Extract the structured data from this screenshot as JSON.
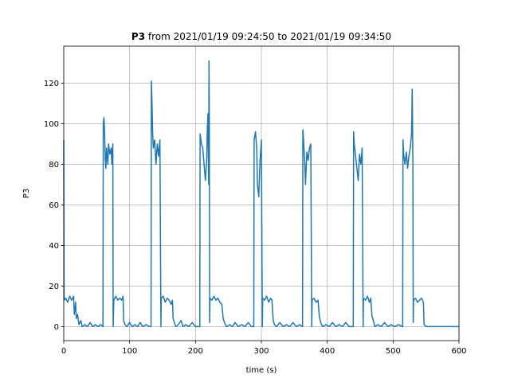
{
  "chart_data": {
    "type": "line",
    "title_parts": [
      "P3",
      "from 2021/01/19 09:24:50 to 2021/01/19 09:34:50"
    ],
    "xlabel": "time (s)",
    "ylabel": "P3",
    "color": "#1f77b4",
    "grid": true,
    "xlim": [
      0,
      600
    ],
    "xticks": [
      0,
      100,
      200,
      300,
      400,
      500,
      600
    ],
    "ylim": [
      -6.9,
      138.2
    ],
    "yticks": [
      0,
      20,
      40,
      60,
      80,
      100,
      120
    ],
    "x": [
      0,
      0.5,
      3,
      6,
      9,
      12,
      15,
      16,
      18,
      19,
      21,
      23,
      26,
      28,
      32,
      36,
      40,
      44,
      48,
      52,
      56,
      59.5,
      60,
      61,
      62,
      63,
      64,
      65,
      67,
      68,
      70,
      72,
      73,
      74.5,
      75,
      76,
      79,
      82,
      85,
      88,
      90,
      91,
      93,
      96,
      100,
      104,
      108,
      112,
      116,
      120,
      125,
      130,
      132.5,
      133,
      134,
      135,
      136,
      138,
      140,
      142,
      144,
      146,
      147.5,
      148,
      151,
      154,
      157,
      160,
      163,
      165,
      166,
      168,
      170,
      174,
      178,
      181,
      185,
      190,
      195,
      200,
      206.5,
      207,
      209,
      211,
      213,
      215,
      217,
      218,
      219,
      220,
      220.5,
      221,
      221.5,
      222,
      225,
      228,
      231,
      234,
      237,
      240,
      242,
      244,
      247,
      252,
      256,
      260,
      265,
      270,
      275,
      280,
      285,
      288.5,
      289,
      291,
      293,
      294,
      296,
      298,
      300,
      301.5,
      302,
      305,
      308,
      311,
      314,
      316,
      318,
      320,
      323,
      328,
      333,
      338,
      343,
      348,
      353,
      358,
      362.5,
      363,
      364,
      366,
      367,
      369,
      371,
      373,
      375,
      376.5,
      377,
      380,
      383,
      386,
      388,
      390,
      393,
      398,
      403,
      408,
      413,
      418,
      423,
      428,
      433,
      439.5,
      440,
      441,
      443,
      445,
      447,
      449,
      451,
      453,
      454.5,
      455,
      458,
      461,
      464,
      466,
      468,
      470,
      472,
      477,
      482,
      487,
      492,
      497,
      502,
      508,
      514.5,
      515,
      516,
      518,
      520,
      522,
      524,
      526,
      528,
      529,
      530,
      530.5,
      531,
      534,
      537,
      540,
      543,
      546,
      547,
      550,
      560,
      570,
      580,
      590,
      600
    ],
    "values": [
      92,
      13,
      14,
      12,
      15,
      13,
      15,
      6,
      12,
      4,
      6,
      1,
      3,
      0,
      1,
      0,
      2,
      0,
      1,
      0,
      1,
      0,
      100,
      103,
      96,
      82,
      78,
      88,
      80,
      90,
      85,
      88,
      80,
      90,
      0,
      13,
      15,
      13,
      14,
      13,
      15,
      3,
      1,
      0,
      2,
      0,
      1,
      0,
      2,
      0,
      1,
      0,
      0,
      121,
      110,
      95,
      88,
      92,
      80,
      90,
      84,
      92,
      0,
      14,
      15,
      12,
      14,
      13,
      11,
      13,
      4,
      2,
      0,
      1,
      3,
      0,
      1,
      0,
      2,
      0,
      0,
      95,
      90,
      88,
      80,
      72,
      82,
      98,
      105,
      70,
      131,
      100,
      2,
      14,
      13,
      15,
      13,
      14,
      12,
      11,
      4,
      2,
      0,
      1,
      0,
      2,
      0,
      1,
      0,
      2,
      0,
      0,
      92,
      96,
      88,
      70,
      64,
      82,
      92,
      0,
      14,
      13,
      15,
      12,
      14,
      13,
      3,
      1,
      0,
      2,
      0,
      1,
      0,
      2,
      0,
      1,
      0,
      97,
      92,
      80,
      70,
      86,
      82,
      88,
      90,
      0,
      13,
      14,
      12,
      13,
      5,
      2,
      0,
      1,
      0,
      2,
      0,
      1,
      0,
      2,
      0,
      0,
      96,
      90,
      84,
      78,
      72,
      85,
      80,
      88,
      0,
      14,
      13,
      15,
      12,
      14,
      5,
      3,
      0,
      1,
      0,
      2,
      0,
      1,
      0,
      1,
      0,
      92,
      85,
      80,
      86,
      78,
      84,
      88,
      95,
      117,
      80,
      2,
      13,
      14,
      12,
      13,
      14,
      12,
      1,
      0,
      0,
      0,
      0,
      0,
      0
    ]
  }
}
